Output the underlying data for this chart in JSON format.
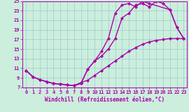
{
  "xlabel": "Windchill (Refroidissement éolien,°C)",
  "xlim": [
    -0.5,
    23.5
  ],
  "ylim": [
    7,
    25
  ],
  "xticks": [
    0,
    1,
    2,
    3,
    4,
    5,
    6,
    7,
    8,
    9,
    10,
    11,
    12,
    13,
    14,
    15,
    16,
    17,
    18,
    19,
    20,
    21,
    22,
    23
  ],
  "yticks": [
    7,
    9,
    11,
    13,
    15,
    17,
    19,
    21,
    23,
    25
  ],
  "bg_color": "#cceedd",
  "line_color": "#aa00aa",
  "grid_color": "#99cccc",
  "line1_x": [
    0,
    1,
    2,
    3,
    4,
    5,
    6,
    7,
    8,
    9,
    10,
    11,
    12,
    13,
    14,
    15,
    16,
    17,
    18,
    19,
    20,
    21,
    22,
    23
  ],
  "line1_y": [
    10.5,
    9.2,
    8.6,
    8.2,
    7.8,
    7.7,
    7.5,
    7.4,
    7.8,
    10.8,
    12.5,
    13.5,
    15.0,
    17.2,
    21.5,
    22.5,
    24.2,
    24.5,
    23.8,
    25.0,
    24.5,
    23.2,
    19.5,
    17.2
  ],
  "line2_x": [
    0,
    1,
    2,
    3,
    4,
    5,
    6,
    7,
    8,
    9,
    10,
    11,
    12,
    13,
    14,
    15,
    16,
    17,
    18,
    21,
    22,
    23
  ],
  "line2_y": [
    10.5,
    9.2,
    8.6,
    8.2,
    7.8,
    7.7,
    7.5,
    7.4,
    7.8,
    10.8,
    12.5,
    14.5,
    17.2,
    22.5,
    24.2,
    24.5,
    23.8,
    25.0,
    24.5,
    23.2,
    19.5,
    17.2
  ],
  "line3_x": [
    0,
    1,
    2,
    3,
    4,
    5,
    6,
    7,
    8,
    9,
    10,
    11,
    12,
    13,
    14,
    15,
    16,
    17,
    18,
    19,
    20,
    21,
    22,
    23
  ],
  "line3_y": [
    10.5,
    9.2,
    8.6,
    8.2,
    7.8,
    7.7,
    7.5,
    7.4,
    8.0,
    8.5,
    9.5,
    10.5,
    11.5,
    12.5,
    13.5,
    14.5,
    15.3,
    16.0,
    16.5,
    16.8,
    17.0,
    17.2,
    17.2,
    17.2
  ],
  "marker": "D",
  "markersize": 2.5,
  "linewidth": 1.0
}
